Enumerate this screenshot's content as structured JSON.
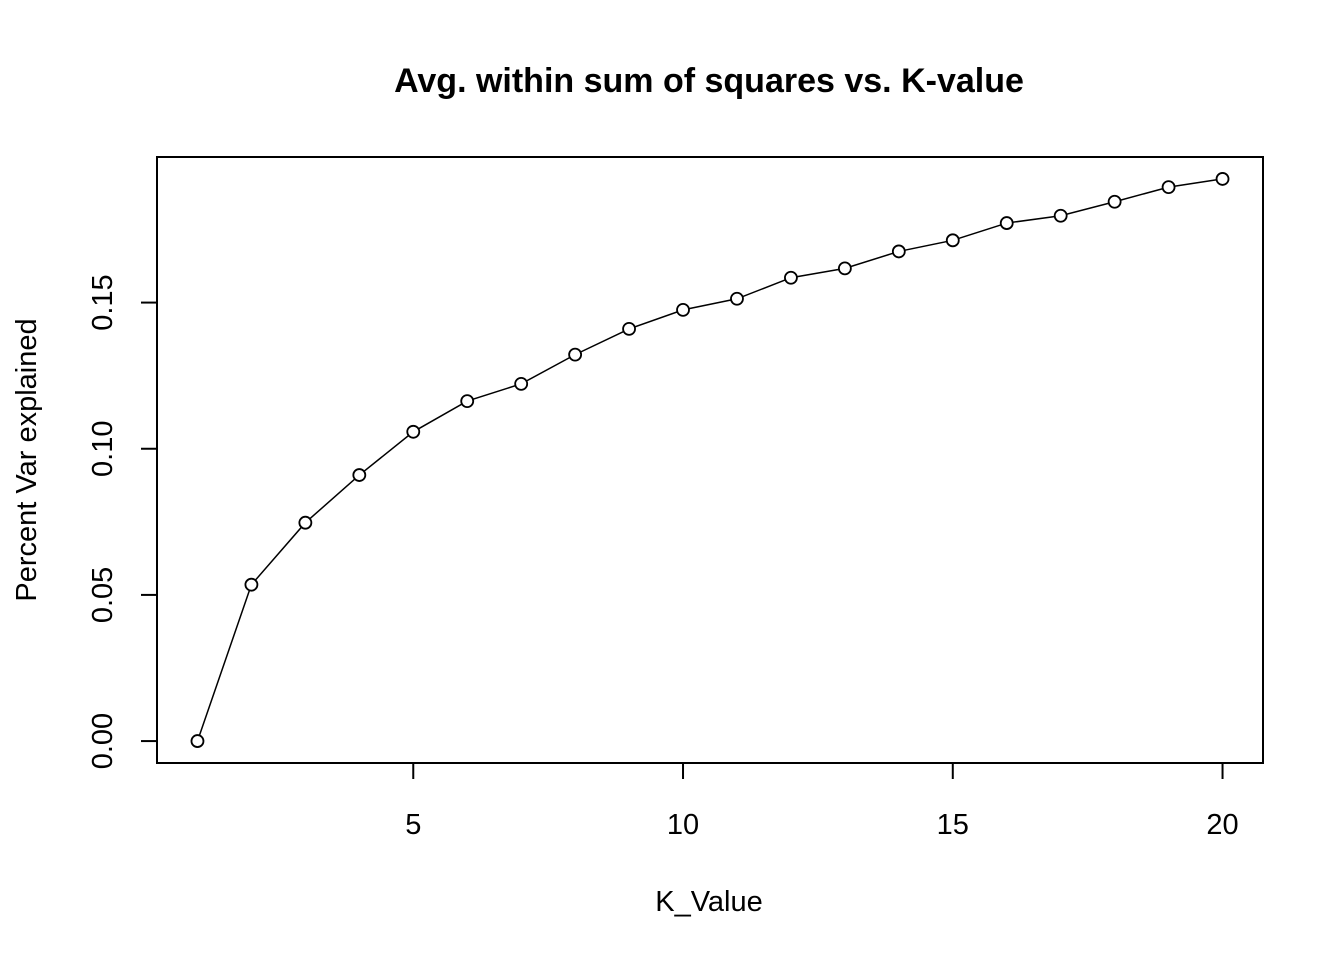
{
  "chart_data": {
    "type": "line",
    "title": "Avg. within sum of squares vs. K-value",
    "xlabel": "K_Value",
    "ylabel": "Percent Var explained",
    "x": [
      1,
      2,
      3,
      4,
      5,
      6,
      7,
      8,
      9,
      10,
      11,
      12,
      13,
      14,
      15,
      16,
      17,
      18,
      19,
      20
    ],
    "series": [
      {
        "values": [
          0.0,
          0.0535,
          0.0747,
          0.091,
          0.1058,
          0.1163,
          0.1222,
          0.1322,
          0.141,
          0.1475,
          0.1513,
          0.1585,
          0.1617,
          0.1675,
          0.1713,
          0.1772,
          0.1797,
          0.1845,
          0.1895,
          0.1923
        ]
      }
    ],
    "xlim": [
      0.25,
      20.75
    ],
    "ylim": [
      -0.0075,
      0.1998
    ],
    "xticks": [
      5,
      10,
      15,
      20
    ],
    "xtick_labels": [
      "5",
      "10",
      "15",
      "20"
    ],
    "yticks": [
      0.0,
      0.05,
      0.1,
      0.15
    ],
    "ytick_labels": [
      "0.00",
      "0.05",
      "0.10",
      "0.15"
    ],
    "markers": "open-circle",
    "grid": false,
    "colors": {
      "line": "#000000",
      "marker": "#000000",
      "background": "#ffffff"
    }
  }
}
